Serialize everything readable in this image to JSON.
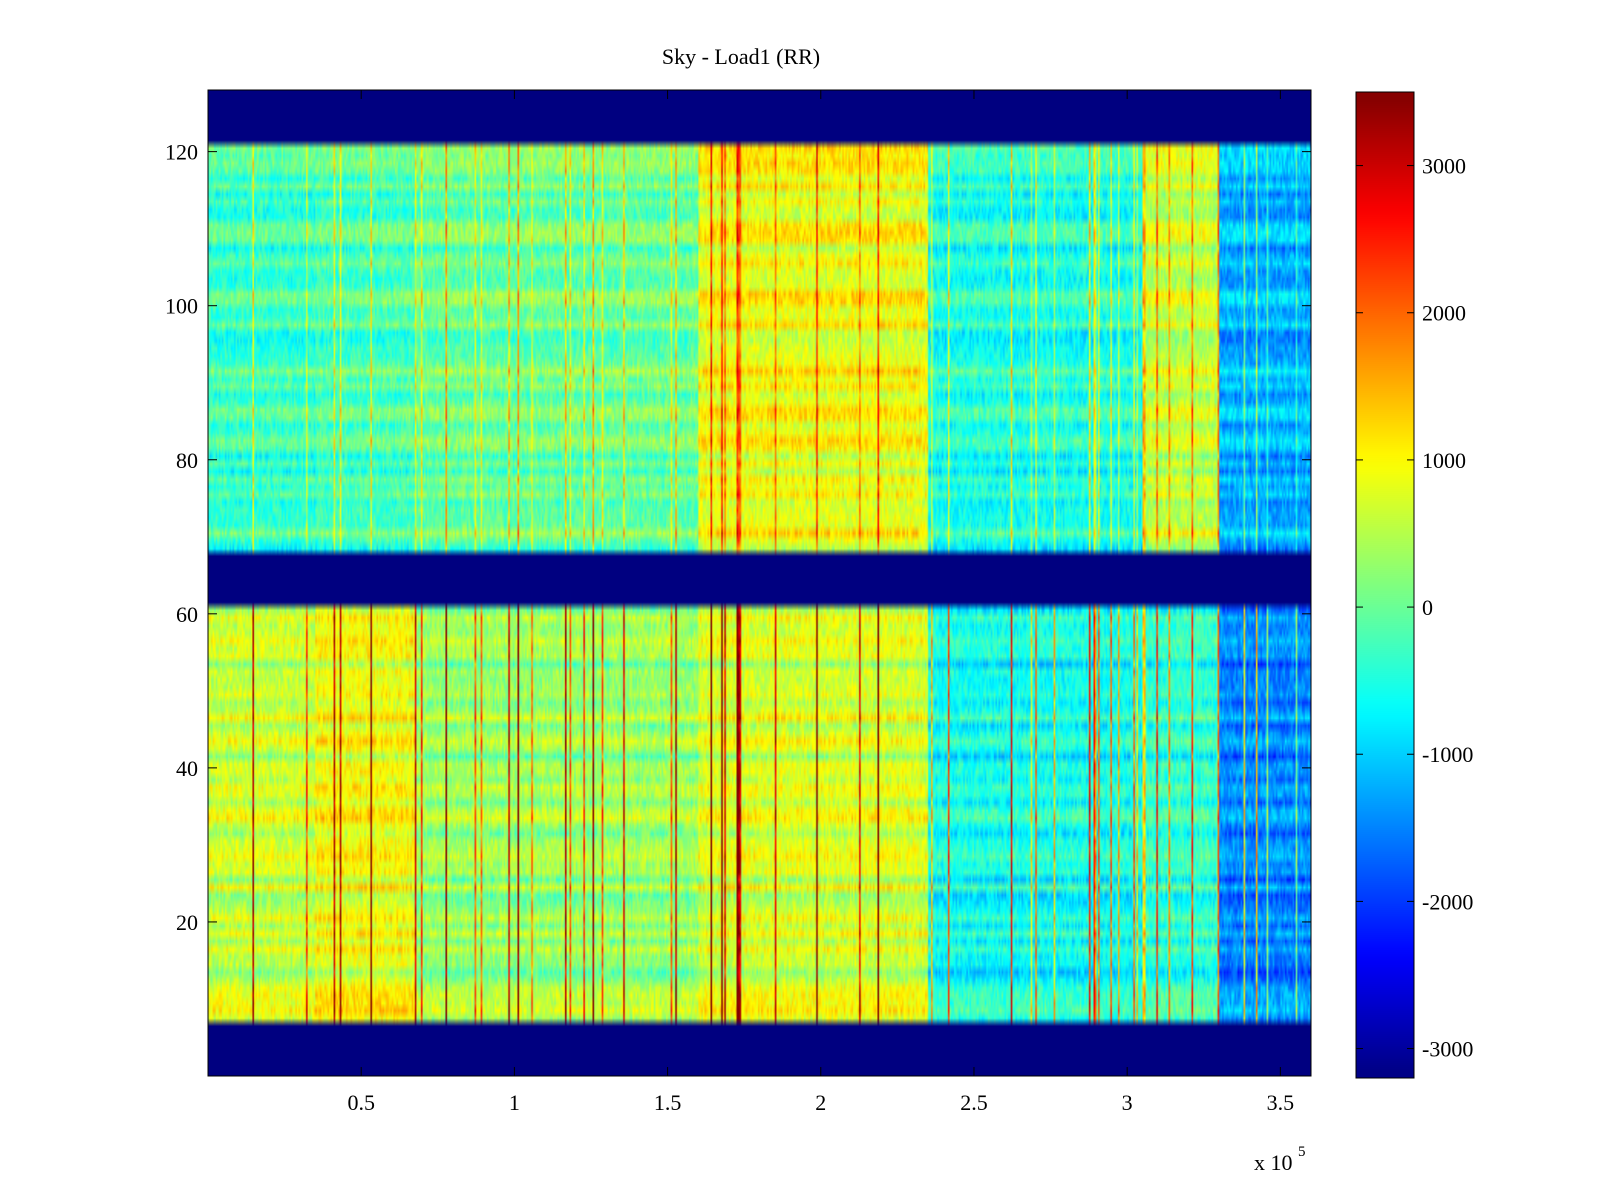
{
  "chart_data": {
    "type": "heatmap",
    "title": "Sky - Load1 (RR)",
    "xlabel": "",
    "ylabel": "",
    "x_exponent_label": "x 10",
    "x_exponent": "5",
    "xlim": [
      0,
      3.6
    ],
    "ylim": [
      0,
      128
    ],
    "x_ticks": [
      0.5,
      1,
      1.5,
      2,
      2.5,
      3,
      3.5
    ],
    "x_tick_labels": [
      "0.5",
      "1",
      "1.5",
      "2",
      "2.5",
      "3",
      "3.5"
    ],
    "y_ticks": [
      20,
      40,
      60,
      80,
      100,
      120
    ],
    "y_tick_labels": [
      "20",
      "40",
      "60",
      "80",
      "100",
      "120"
    ],
    "colorbar": {
      "colormap": "jet",
      "clim": [
        -3200,
        3500
      ],
      "ticks": [
        3000,
        2000,
        1000,
        0,
        -1000,
        -2000,
        -3000
      ],
      "tick_labels": [
        "3000",
        "2000",
        "1000",
        "0",
        "-1000",
        "-2000",
        "-3000"
      ]
    },
    "masked_row_bands": [
      [
        0,
        7
      ],
      [
        61,
        68
      ],
      [
        121,
        128
      ]
    ],
    "column_segments": [
      {
        "x_range": [
          0,
          0.35
        ],
        "lower_mean": 600,
        "upper_mean": -300
      },
      {
        "x_range": [
          0.35,
          0.68
        ],
        "lower_mean": 900,
        "upper_mean": -200
      },
      {
        "x_range": [
          0.68,
          1.6
        ],
        "lower_mean": 300,
        "upper_mean": 0
      },
      {
        "x_range": [
          1.6,
          2.35
        ],
        "lower_mean": 700,
        "upper_mean": 900
      },
      {
        "x_range": [
          2.35,
          3.05
        ],
        "lower_mean": -600,
        "upper_mean": -500
      },
      {
        "x_range": [
          3.05,
          3.3
        ],
        "lower_mean": -400,
        "upper_mean": 600
      },
      {
        "x_range": [
          3.3,
          3.6
        ],
        "lower_mean": -1500,
        "upper_mean": -1200
      }
    ],
    "grid": false,
    "legend": "none"
  }
}
